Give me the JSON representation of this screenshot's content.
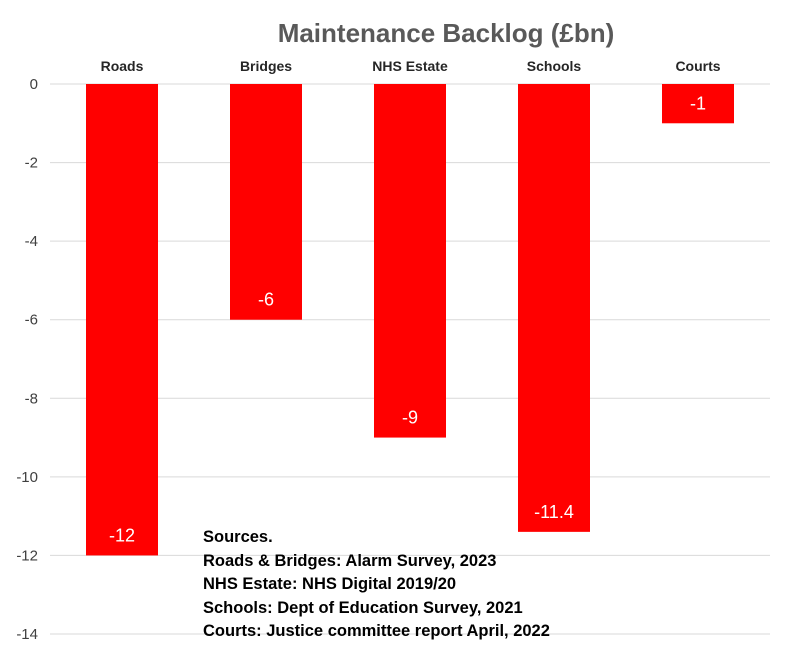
{
  "chart_data": {
    "type": "bar",
    "title": "Maintenance Backlog (£bn)",
    "categories": [
      "Roads",
      "Bridges",
      "NHS Estate",
      "Schools",
      "Courts"
    ],
    "values": [
      -12,
      -6,
      -9,
      -11.4,
      -1
    ],
    "data_labels": [
      "-12",
      "-6",
      "-9",
      "-11.4",
      "-1"
    ],
    "ylim": [
      -14,
      0
    ],
    "yticks": [
      0,
      -2,
      -4,
      -6,
      -8,
      -10,
      -12,
      -14
    ],
    "xlabel": "",
    "ylabel": "",
    "category_axis_position": "top",
    "grid": true,
    "bar_color": "#ff0000",
    "grid_color": "#d9d9d9",
    "annotations": [
      "Sources.",
      "Roads & Bridges:  Alarm Survey, 2023",
      "NHS Estate: NHS Digital 2019/20",
      "Schools: Dept of Education Survey, 2021",
      "Courts: Justice committee report April, 2022"
    ]
  }
}
